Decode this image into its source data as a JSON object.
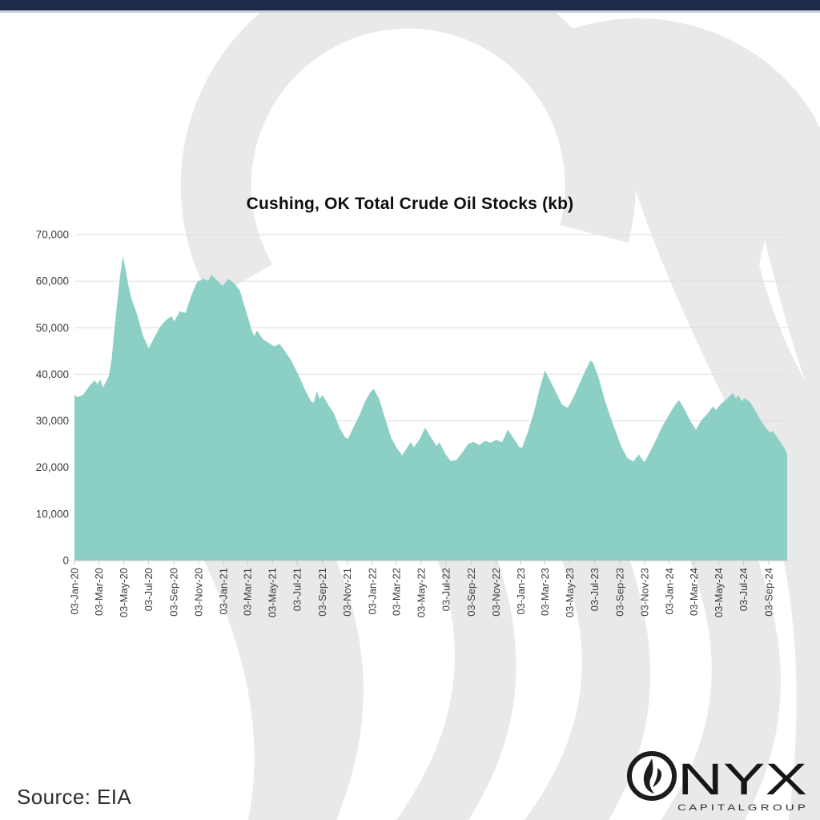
{
  "top_bar": {
    "color": "#1F2A49"
  },
  "title": "Cushing, OK Total Crude Oil Stocks (kb)",
  "source": {
    "label": "Source: EIA"
  },
  "logo": {
    "icon": "flame-ring-o-icon",
    "brand_text": "NYX",
    "brand_subtext": "C A P I T A L   G R O U P"
  },
  "chart_data": {
    "type": "area",
    "title": "Cushing, OK Total Crude Oil Stocks (kb)",
    "xlabel": "",
    "ylabel": "",
    "ylim": [
      0,
      70000
    ],
    "grid": "horizontal",
    "legend": "none",
    "area_color": "#8CCFC5",
    "gridline_color": "#dedede",
    "axis_color": "#c6c6c6",
    "label_color": "#3d3d3d",
    "y_ticks": [
      "0",
      "10,000",
      "20,000",
      "30,000",
      "40,000",
      "50,000",
      "60,000",
      "70,000"
    ],
    "y_tick_values": [
      0,
      10000,
      20000,
      30000,
      40000,
      50000,
      60000,
      70000
    ],
    "x_tick_labels": [
      "03-Jan-20",
      "03-Mar-20",
      "03-May-20",
      "03-Jul-20",
      "03-Sep-20",
      "03-Nov-20",
      "03-Jan-21",
      "03-Mar-21",
      "03-May-21",
      "03-Jul-21",
      "03-Sep-21",
      "03-Nov-21",
      "03-Jan-22",
      "03-Mar-22",
      "03-May-22",
      "03-Jul-22",
      "03-Sep-22",
      "03-Nov-22",
      "03-Jan-23",
      "03-Mar-23",
      "03-May-23",
      "03-Jul-23",
      "03-Sep-23",
      "03-Nov-23",
      "03-Jan-24",
      "03-Mar-24",
      "03-May-24",
      "03-Jul-24",
      "03-Sep-24"
    ],
    "series": [
      {
        "name": "Cushing, OK Total Crude Oil Stocks",
        "unit": "kb",
        "points": [
          [
            "03-Jan-20",
            35500
          ],
          [
            "10-Jan-20",
            35100
          ],
          [
            "24-Jan-20",
            35600
          ],
          [
            "07-Feb-20",
            37300
          ],
          [
            "21-Feb-20",
            38700
          ],
          [
            "28-Feb-20",
            37900
          ],
          [
            "06-Mar-20",
            38900
          ],
          [
            "13-Mar-20",
            37200
          ],
          [
            "27-Mar-20",
            39500
          ],
          [
            "03-Apr-20",
            43000
          ],
          [
            "10-Apr-20",
            49500
          ],
          [
            "17-Apr-20",
            55500
          ],
          [
            "24-Apr-20",
            61200
          ],
          [
            "01-May-20",
            65400
          ],
          [
            "08-May-20",
            62200
          ],
          [
            "15-May-20",
            58900
          ],
          [
            "22-May-20",
            56200
          ],
          [
            "05-Jun-20",
            52800
          ],
          [
            "19-Jun-20",
            48400
          ],
          [
            "03-Jul-20",
            45600
          ],
          [
            "17-Jul-20",
            47900
          ],
          [
            "31-Jul-20",
            50200
          ],
          [
            "14-Aug-20",
            51600
          ],
          [
            "28-Aug-20",
            52500
          ],
          [
            "04-Sep-20",
            51400
          ],
          [
            "18-Sep-20",
            53500
          ],
          [
            "02-Oct-20",
            53200
          ],
          [
            "16-Oct-20",
            57000
          ],
          [
            "30-Oct-20",
            59800
          ],
          [
            "13-Nov-20",
            60500
          ],
          [
            "27-Nov-20",
            60100
          ],
          [
            "04-Dec-20",
            61400
          ],
          [
            "18-Dec-20",
            60200
          ],
          [
            "01-Jan-21",
            59000
          ],
          [
            "15-Jan-21",
            60500
          ],
          [
            "29-Jan-21",
            59600
          ],
          [
            "12-Feb-21",
            58000
          ],
          [
            "26-Feb-21",
            54000
          ],
          [
            "12-Mar-21",
            49800
          ],
          [
            "19-Mar-21",
            48200
          ],
          [
            "26-Mar-21",
            49400
          ],
          [
            "09-Apr-21",
            47600
          ],
          [
            "23-Apr-21",
            46800
          ],
          [
            "07-May-21",
            46000
          ],
          [
            "21-May-21",
            46500
          ],
          [
            "04-Jun-21",
            44800
          ],
          [
            "18-Jun-21",
            43000
          ],
          [
            "02-Jul-21",
            40500
          ],
          [
            "09-Jul-21",
            39300
          ],
          [
            "23-Jul-21",
            36500
          ],
          [
            "06-Aug-21",
            34200
          ],
          [
            "13-Aug-21",
            33900
          ],
          [
            "20-Aug-21",
            36400
          ],
          [
            "27-Aug-21",
            34700
          ],
          [
            "03-Sep-21",
            35500
          ],
          [
            "17-Sep-21",
            33500
          ],
          [
            "01-Oct-21",
            31600
          ],
          [
            "15-Oct-21",
            28500
          ],
          [
            "29-Oct-21",
            26400
          ],
          [
            "05-Nov-21",
            26200
          ],
          [
            "19-Nov-21",
            28800
          ],
          [
            "03-Dec-21",
            31200
          ],
          [
            "17-Dec-21",
            34300
          ],
          [
            "31-Dec-21",
            36300
          ],
          [
            "07-Jan-22",
            36900
          ],
          [
            "21-Jan-22",
            34500
          ],
          [
            "04-Feb-22",
            30500
          ],
          [
            "18-Feb-22",
            26500
          ],
          [
            "04-Mar-22",
            24200
          ],
          [
            "18-Mar-22",
            22600
          ],
          [
            "01-Apr-22",
            24600
          ],
          [
            "08-Apr-22",
            25400
          ],
          [
            "15-Apr-22",
            24300
          ],
          [
            "29-Apr-22",
            26000
          ],
          [
            "13-May-22",
            28500
          ],
          [
            "27-May-22",
            26500
          ],
          [
            "10-Jun-22",
            24600
          ],
          [
            "17-Jun-22",
            25400
          ],
          [
            "01-Jul-22",
            23000
          ],
          [
            "15-Jul-22",
            21400
          ],
          [
            "29-Jul-22",
            21600
          ],
          [
            "12-Aug-22",
            23200
          ],
          [
            "26-Aug-22",
            25000
          ],
          [
            "09-Sep-22",
            25500
          ],
          [
            "23-Sep-22",
            24800
          ],
          [
            "07-Oct-22",
            25700
          ],
          [
            "21-Oct-22",
            25300
          ],
          [
            "04-Nov-22",
            25900
          ],
          [
            "18-Nov-22",
            25400
          ],
          [
            "02-Dec-22",
            28100
          ],
          [
            "16-Dec-22",
            26300
          ],
          [
            "30-Dec-22",
            24400
          ],
          [
            "06-Jan-23",
            24200
          ],
          [
            "20-Jan-23",
            27500
          ],
          [
            "03-Feb-23",
            31500
          ],
          [
            "17-Feb-23",
            36500
          ],
          [
            "03-Mar-23",
            40800
          ],
          [
            "17-Mar-23",
            38500
          ],
          [
            "31-Mar-23",
            36000
          ],
          [
            "14-Apr-23",
            33500
          ],
          [
            "28-Apr-23",
            32800
          ],
          [
            "12-May-23",
            35000
          ],
          [
            "26-May-23",
            37800
          ],
          [
            "09-Jun-23",
            40500
          ],
          [
            "23-Jun-23",
            43000
          ],
          [
            "30-Jun-23",
            42400
          ],
          [
            "14-Jul-23",
            39000
          ],
          [
            "28-Jul-23",
            34500
          ],
          [
            "11-Aug-23",
            30800
          ],
          [
            "25-Aug-23",
            27500
          ],
          [
            "08-Sep-23",
            24200
          ],
          [
            "22-Sep-23",
            22000
          ],
          [
            "06-Oct-23",
            21300
          ],
          [
            "20-Oct-23",
            22800
          ],
          [
            "27-Oct-23",
            21800
          ],
          [
            "03-Nov-23",
            21100
          ],
          [
            "17-Nov-23",
            23500
          ],
          [
            "01-Dec-23",
            25900
          ],
          [
            "15-Dec-23",
            28600
          ],
          [
            "29-Dec-23",
            30700
          ],
          [
            "12-Jan-24",
            32800
          ],
          [
            "26-Jan-24",
            34500
          ],
          [
            "09-Feb-24",
            32500
          ],
          [
            "23-Feb-24",
            30000
          ],
          [
            "08-Mar-24",
            28100
          ],
          [
            "22-Mar-24",
            30200
          ],
          [
            "05-Apr-24",
            31500
          ],
          [
            "19-Apr-24",
            33100
          ],
          [
            "26-Apr-24",
            32300
          ],
          [
            "10-May-24",
            33800
          ],
          [
            "24-May-24",
            34800
          ],
          [
            "07-Jun-24",
            36000
          ],
          [
            "14-Jun-24",
            34800
          ],
          [
            "21-Jun-24",
            35500
          ],
          [
            "28-Jun-24",
            34200
          ],
          [
            "05-Jul-24",
            34900
          ],
          [
            "19-Jul-24",
            34000
          ],
          [
            "02-Aug-24",
            32000
          ],
          [
            "16-Aug-24",
            29800
          ],
          [
            "30-Aug-24",
            28100
          ],
          [
            "06-Sep-24",
            27500
          ],
          [
            "13-Sep-24",
            27800
          ],
          [
            "27-Sep-24",
            26000
          ],
          [
            "11-Oct-24",
            24200
          ],
          [
            "18-Oct-24",
            22900
          ]
        ]
      }
    ]
  }
}
